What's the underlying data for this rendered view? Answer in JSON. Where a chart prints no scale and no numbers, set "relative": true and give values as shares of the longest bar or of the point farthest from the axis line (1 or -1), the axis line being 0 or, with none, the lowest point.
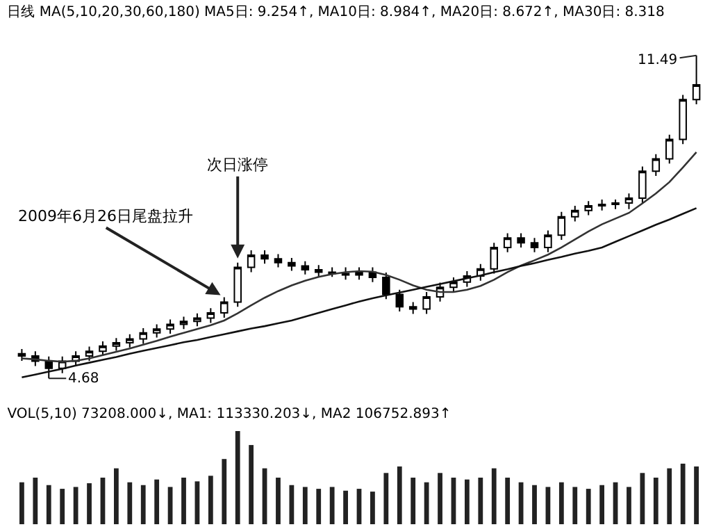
{
  "chart_data": [
    {
      "type": "candlestick",
      "title": "日线 MA(5,10,20,30,60,180) MA5日: 9.254↑, MA10日: 8.984↑, MA20日: 8.672↑, MA30日: 8.318",
      "annotations": [
        "2009年6月26日尾盘拉升",
        "次日涨停",
        "4.68",
        "11.49"
      ],
      "categories": [
        null,
        null,
        null,
        null,
        null,
        null,
        null,
        null,
        null,
        null,
        null,
        null,
        null,
        null,
        null,
        null,
        null,
        null,
        null,
        null,
        null,
        null,
        null,
        null,
        null,
        null,
        null,
        null,
        null,
        null,
        null,
        null,
        null,
        null,
        null,
        null,
        null,
        null,
        null,
        null,
        null,
        null,
        null,
        null,
        null,
        null,
        null,
        null,
        null,
        null,
        null
      ],
      "ohlc": [
        [
          5.2,
          5.3,
          5.05,
          5.15
        ],
        [
          5.15,
          5.25,
          4.94,
          5.04
        ],
        [
          5.04,
          5.14,
          4.68,
          4.89
        ],
        [
          4.89,
          5.14,
          4.79,
          5.04
        ],
        [
          5.04,
          5.25,
          4.94,
          5.15
        ],
        [
          5.15,
          5.35,
          5.05,
          5.25
        ],
        [
          5.25,
          5.46,
          5.15,
          5.36
        ],
        [
          5.36,
          5.53,
          5.26,
          5.43
        ],
        [
          5.43,
          5.61,
          5.33,
          5.51
        ],
        [
          5.51,
          5.74,
          5.41,
          5.64
        ],
        [
          5.64,
          5.82,
          5.54,
          5.72
        ],
        [
          5.72,
          5.92,
          5.62,
          5.82
        ],
        [
          5.82,
          5.98,
          5.72,
          5.88
        ],
        [
          5.88,
          6.05,
          5.78,
          5.95
        ],
        [
          5.95,
          6.16,
          5.85,
          6.06
        ],
        [
          6.06,
          6.39,
          5.96,
          6.29
        ],
        [
          6.29,
          7.12,
          6.19,
          7.02
        ],
        [
          7.02,
          7.38,
          6.92,
          7.28
        ],
        [
          7.28,
          7.38,
          7.1,
          7.2
        ],
        [
          7.2,
          7.3,
          7.02,
          7.12
        ],
        [
          7.12,
          7.22,
          6.95,
          7.05
        ],
        [
          7.05,
          7.15,
          6.87,
          6.97
        ],
        [
          6.97,
          7.07,
          6.82,
          6.92
        ],
        [
          6.92,
          7.02,
          6.82,
          6.89
        ],
        [
          6.89,
          7.02,
          6.76,
          6.86
        ],
        [
          6.86,
          7.02,
          6.76,
          6.92
        ],
        [
          6.92,
          7.02,
          6.71,
          6.81
        ],
        [
          6.81,
          6.91,
          6.35,
          6.45
        ],
        [
          6.45,
          6.55,
          6.09,
          6.19
        ],
        [
          6.19,
          6.29,
          6.04,
          6.14
        ],
        [
          6.14,
          6.5,
          6.04,
          6.4
        ],
        [
          6.4,
          6.7,
          6.3,
          6.6
        ],
        [
          6.6,
          6.81,
          6.5,
          6.71
        ],
        [
          6.71,
          6.94,
          6.61,
          6.84
        ],
        [
          6.84,
          7.09,
          6.74,
          6.99
        ],
        [
          6.99,
          7.54,
          6.89,
          7.44
        ],
        [
          7.44,
          7.74,
          7.34,
          7.64
        ],
        [
          7.64,
          7.74,
          7.44,
          7.54
        ],
        [
          7.54,
          7.64,
          7.34,
          7.44
        ],
        [
          7.44,
          7.8,
          7.34,
          7.7
        ],
        [
          7.7,
          8.19,
          7.6,
          8.09
        ],
        [
          8.09,
          8.32,
          7.99,
          8.22
        ],
        [
          8.22,
          8.42,
          8.12,
          8.32
        ],
        [
          8.32,
          8.45,
          8.22,
          8.35
        ],
        [
          8.35,
          8.45,
          8.25,
          8.38
        ],
        [
          8.38,
          8.58,
          8.25,
          8.48
        ],
        [
          8.48,
          9.15,
          8.38,
          9.05
        ],
        [
          9.05,
          9.41,
          8.95,
          9.31
        ],
        [
          9.31,
          9.82,
          9.21,
          9.72
        ],
        [
          9.72,
          10.66,
          9.62,
          10.56
        ],
        [
          10.56,
          11.49,
          10.46,
          10.87
        ]
      ],
      "series": [
        {
          "type": "line",
          "color": "#333333",
          "values": [
            5.1,
            5.08,
            5.05,
            5.03,
            5.05,
            5.1,
            5.17,
            5.24,
            5.31,
            5.39,
            5.47,
            5.56,
            5.64,
            5.72,
            5.8,
            5.9,
            6.05,
            6.22,
            6.38,
            6.52,
            6.64,
            6.74,
            6.82,
            6.88,
            6.92,
            6.94,
            6.93,
            6.86,
            6.76,
            6.64,
            6.55,
            6.5,
            6.5,
            6.55,
            6.63,
            6.76,
            6.92,
            7.06,
            7.17,
            7.29,
            7.44,
            7.61,
            7.78,
            7.93,
            8.05,
            8.17,
            8.37,
            8.58,
            8.82,
            9.13,
            9.45
          ]
        },
        {
          "type": "line",
          "color": "#111111",
          "values": [
            4.7,
            4.76,
            4.82,
            4.88,
            4.95,
            5.01,
            5.07,
            5.13,
            5.2,
            5.26,
            5.32,
            5.38,
            5.44,
            5.49,
            5.55,
            5.61,
            5.67,
            5.73,
            5.78,
            5.84,
            5.9,
            5.98,
            6.06,
            6.14,
            6.22,
            6.3,
            6.37,
            6.43,
            6.49,
            6.55,
            6.61,
            6.67,
            6.73,
            6.79,
            6.85,
            6.92,
            6.98,
            7.05,
            7.11,
            7.18,
            7.24,
            7.31,
            7.37,
            7.44,
            7.56,
            7.68,
            7.8,
            7.92,
            8.03,
            8.15,
            8.27
          ]
        }
      ],
      "tick_labels": false,
      "grid": false
    },
    {
      "type": "bar",
      "title": "VOL(5,10) 73208.000↓, MA1: 113330.203↓, MA2 106752.893↑",
      "relative": true,
      "color": "#222222",
      "categories": [
        null,
        null,
        null,
        null,
        null,
        null,
        null,
        null,
        null,
        null,
        null,
        null,
        null,
        null,
        null,
        null,
        null,
        null,
        null,
        null,
        null,
        null,
        null,
        null,
        null,
        null,
        null,
        null,
        null,
        null,
        null,
        null,
        null,
        null,
        null,
        null,
        null,
        null,
        null,
        null,
        null,
        null,
        null,
        null,
        null,
        null,
        null,
        null,
        null,
        null,
        null
      ],
      "values": [
        0.45,
        0.5,
        0.42,
        0.38,
        0.4,
        0.44,
        0.5,
        0.6,
        0.45,
        0.42,
        0.48,
        0.4,
        0.5,
        0.46,
        0.52,
        0.7,
        1.0,
        0.85,
        0.6,
        0.5,
        0.42,
        0.4,
        0.38,
        0.4,
        0.36,
        0.38,
        0.35,
        0.55,
        0.62,
        0.5,
        0.45,
        0.55,
        0.5,
        0.48,
        0.5,
        0.6,
        0.5,
        0.45,
        0.42,
        0.4,
        0.45,
        0.4,
        0.38,
        0.42,
        0.45,
        0.4,
        0.55,
        0.5,
        0.6,
        0.65,
        0.62
      ],
      "tick_labels": false,
      "grid": false
    }
  ]
}
